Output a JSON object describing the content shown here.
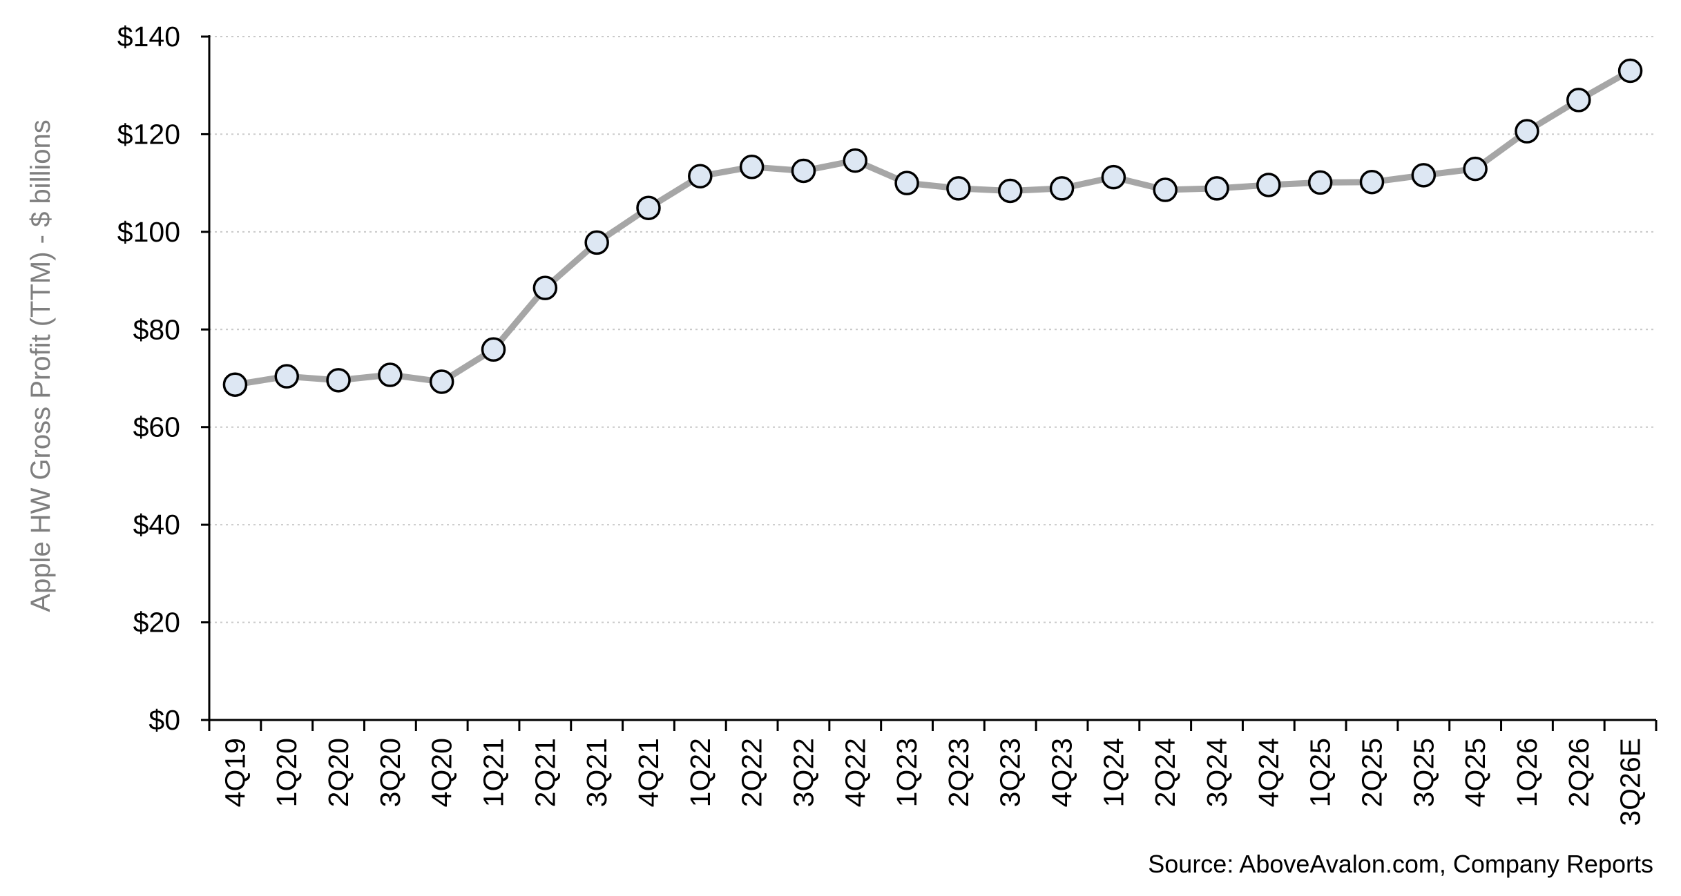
{
  "chart_data": {
    "type": "line",
    "ylabel": "Apple HW Gross Profit  (TTM) - $ billions",
    "source": "Source: AboveAvalon.com, Company Reports",
    "ylim": [
      0,
      140
    ],
    "yticks": [
      0,
      20,
      40,
      60,
      80,
      100,
      120,
      140
    ],
    "ytick_labels": [
      "$0",
      "$20",
      "$40",
      "$60",
      "$80",
      "$100",
      "$120",
      "$140"
    ],
    "grid": true,
    "legend": "none",
    "categories": [
      "4Q19",
      "1Q20",
      "2Q20",
      "3Q20",
      "4Q20",
      "1Q21",
      "2Q21",
      "3Q21",
      "4Q21",
      "1Q22",
      "2Q22",
      "3Q22",
      "4Q22",
      "1Q23",
      "2Q23",
      "3Q23",
      "4Q23",
      "1Q24",
      "2Q24",
      "3Q24",
      "4Q24",
      "1Q25",
      "2Q25",
      "3Q25",
      "4Q25",
      "1Q26",
      "2Q26",
      "3Q26E"
    ],
    "series": [
      {
        "values": [
          68.7,
          70.4,
          69.6,
          70.7,
          69.3,
          75.9,
          88.5,
          97.8,
          104.9,
          111.4,
          113.3,
          112.5,
          114.6,
          110.0,
          108.9,
          108.4,
          108.9,
          111.2,
          108.6,
          108.9,
          109.6,
          110.1,
          110.2,
          111.6,
          112.9,
          120.6,
          127.0,
          133.0
        ]
      }
    ],
    "colors": {
      "line": "#a6a6a6",
      "marker_fill": "#dde7f3",
      "marker_edge": "#000000",
      "grid": "#c9c9c9",
      "ylabel": "#7f7f7f"
    }
  }
}
